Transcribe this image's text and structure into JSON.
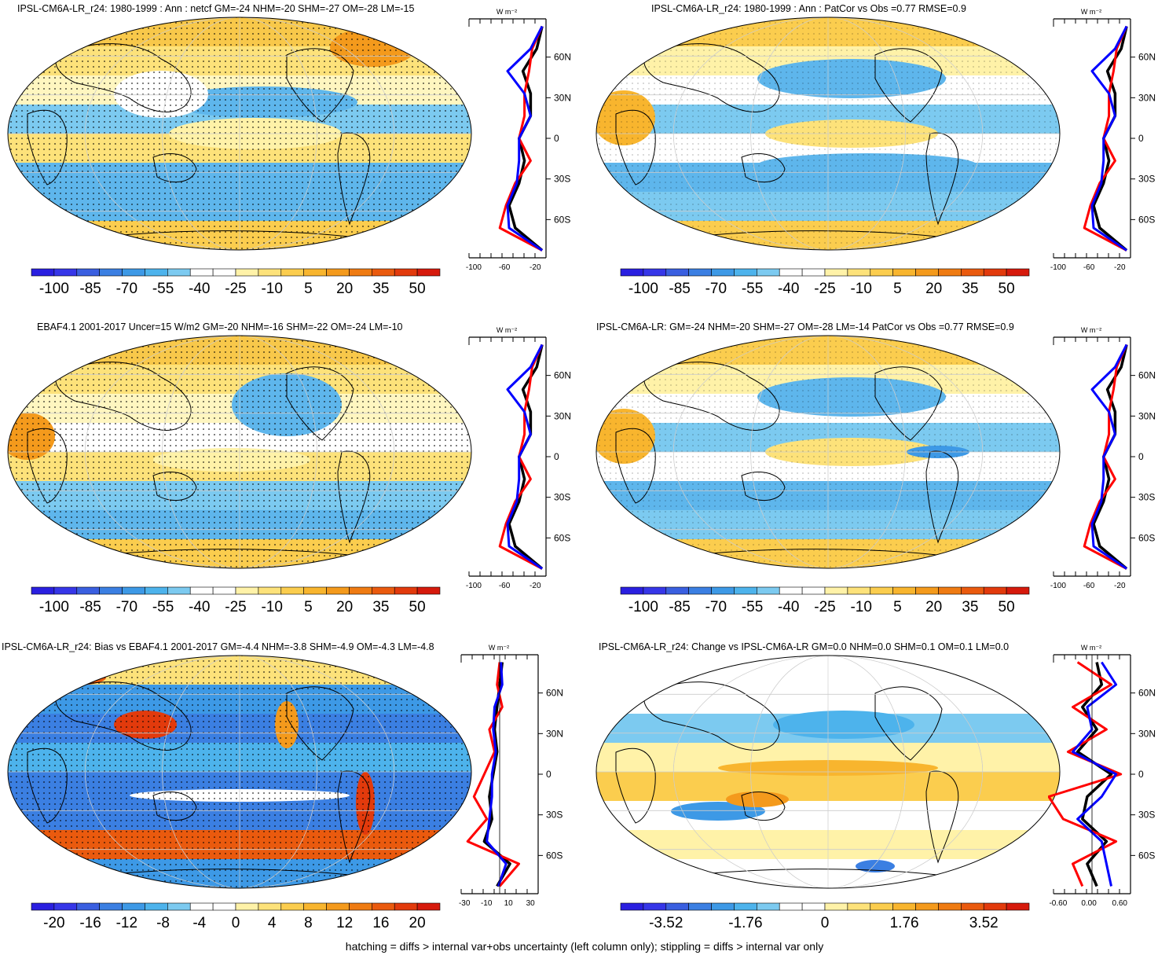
{
  "footnote": "hatching = diffs > internal var+obs uncertainty (left column only); stippling = diffs > internal var only",
  "zonal_unit": "W m⁻²",
  "lat_labels": [
    "60N",
    "30N",
    "0",
    "30S",
    "60S"
  ],
  "palette": [
    "#2a1fe0",
    "#3636e8",
    "#3a5fe0",
    "#3b7fe2",
    "#3d99e6",
    "#4db3ec",
    "#7ccaf0",
    "#ffffff",
    "#ffffff",
    "#fff2a8",
    "#fde27a",
    "#fbcd4e",
    "#f8b52e",
    "#f49a1c",
    "#ef7b12",
    "#ea5a0e",
    "#e23a0c",
    "#d61a0c"
  ],
  "colors": {
    "model": "#000000",
    "obs": "#ff0000",
    "alt": "#0000ff",
    "land": "#f5c63a",
    "ocean_neg": "#5eb6ec",
    "grid": "#cccccc"
  },
  "panels": [
    {
      "title": "IPSL-CM6A-LR_r24: 1980-1999 : Ann : netcf GM=-24 NHM=-20 SHM=-27 OM=-28 LM=-15",
      "colorbar_labels": [
        "-100",
        "-85",
        "-70",
        "-55",
        "-40",
        "-25",
        "-10",
        "5",
        "20",
        "35",
        "50"
      ],
      "zonal_ticks": [
        "-100",
        "-60",
        "-20"
      ]
    },
    {
      "title": "IPSL-CM6A-LR_r24: 1980-1999 : Ann : PatCor vs Obs =0.77 RMSE=0.9",
      "colorbar_labels": [
        "-100",
        "-85",
        "-70",
        "-55",
        "-40",
        "-25",
        "-10",
        "5",
        "20",
        "35",
        "50"
      ],
      "zonal_ticks": [
        "-100",
        "-60",
        "-20"
      ]
    },
    {
      "title": "EBAF4.1 2001-2017 Uncer=15 W/m2 GM=-20 NHM=-16 SHM=-22 OM=-24 LM=-10",
      "colorbar_labels": [
        "-100",
        "-85",
        "-70",
        "-55",
        "-40",
        "-25",
        "-10",
        "5",
        "20",
        "35",
        "50"
      ],
      "zonal_ticks": [
        "-100",
        "-60",
        "-20"
      ]
    },
    {
      "title": "IPSL-CM6A-LR: GM=-24 NHM=-20 SHM=-27 OM=-28 LM=-14 PatCor vs Obs =0.77 RMSE=0.9",
      "colorbar_labels": [
        "-100",
        "-85",
        "-70",
        "-55",
        "-40",
        "-25",
        "-10",
        "5",
        "20",
        "35",
        "50"
      ],
      "zonal_ticks": [
        "-100",
        "-60",
        "-20"
      ]
    },
    {
      "title": "IPSL-CM6A-LR_r24: Bias vs EBAF4.1 2001-2017 GM=-4.4 NHM=-3.8 SHM=-4.9 OM=-4.3 LM=-4.8",
      "colorbar_labels": [
        "-20",
        "-16",
        "-12",
        "-8",
        "-4",
        "0",
        "4",
        "8",
        "12",
        "16",
        "20"
      ],
      "zonal_ticks": [
        "-30",
        "-10",
        "10",
        "30"
      ]
    },
    {
      "title": "IPSL-CM6A-LR_r24: Change vs IPSL-CM6A-LR GM=0.0 NHM=0.0 SHM=0.1 OM=0.1 LM=0.0",
      "colorbar_labels": [
        "-3.52",
        "-1.76",
        "0",
        "1.76",
        "3.52"
      ],
      "zonal_ticks": [
        "-0.60",
        "0.00",
        "0.60"
      ]
    }
  ],
  "chart_data": [
    {
      "type": "heatmap",
      "title": "IPSL-CM6A-LR_r24: 1980-1999 : Ann : netcf GM=-24 NHM=-20 SHM=-27 OM=-28 LM=-15",
      "colorbar": [
        -100,
        -85,
        -70,
        -55,
        -40,
        -25,
        -10,
        5,
        20,
        35,
        50
      ]
    },
    {
      "type": "line",
      "lat": [
        75,
        60,
        45,
        30,
        15,
        0,
        -15,
        -30,
        -45,
        -60,
        -75
      ],
      "series": [
        {
          "values": [
            -5,
            -12,
            -30,
            -20,
            -20,
            -35,
            -28,
            -35,
            -48,
            -40,
            -5
          ]
        },
        {
          "values": [
            -5,
            -18,
            -22,
            -28,
            -28,
            -35,
            -20,
            -40,
            -52,
            -60,
            -5
          ]
        },
        {
          "values": [
            -5,
            -20,
            -50,
            -28,
            -20,
            -35,
            -35,
            -38,
            -50,
            -48,
            -5
          ]
        }
      ],
      "xlim": [
        -100,
        0
      ]
    },
    {
      "type": "heatmap",
      "title": "EBAF4.1 2001-2017 Uncer=15 W/m2 GM=-20 NHM=-16 SHM=-22 OM=-24 LM=-10",
      "colorbar": [
        -100,
        -85,
        -70,
        -55,
        -40,
        -25,
        -10,
        5,
        20,
        35,
        50
      ]
    },
    {
      "type": "heatmap",
      "title": "IPSL-CM6A-LR_r24: Bias vs EBAF4.1 2001-2017 GM=-4.4 NHM=-3.8 SHM=-4.9 OM=-4.3 LM=-4.8",
      "colorbar": [
        -20,
        -16,
        -12,
        -8,
        -4,
        0,
        4,
        8,
        12,
        16,
        20
      ]
    },
    {
      "type": "line",
      "lat": [
        75,
        60,
        45,
        30,
        15,
        0,
        -15,
        -30,
        -45,
        -60,
        -75
      ],
      "series": [
        {
          "values": [
            2,
            0,
            -2,
            -4,
            -2,
            -5,
            -8,
            -6,
            -12,
            8,
            -2
          ]
        },
        {
          "values": [
            0,
            -2,
            2,
            -8,
            -4,
            -12,
            -20,
            -10,
            -25,
            15,
            0
          ]
        },
        {
          "values": [
            1,
            2,
            -4,
            -5,
            -3,
            -6,
            -6,
            -8,
            -10,
            5,
            -1
          ]
        }
      ],
      "xlim": [
        -30,
        30
      ]
    },
    {
      "type": "heatmap",
      "title": "IPSL-CM6A-LR_r24: Change vs IPSL-CM6A-LR GM=0.0 NHM=0.0 SHM=0.1 OM=0.1 LM=0.0",
      "colorbar": [
        -3.52,
        -1.76,
        0,
        1.76,
        3.52
      ]
    },
    {
      "type": "line",
      "lat": [
        75,
        60,
        45,
        30,
        15,
        0,
        -15,
        -30,
        -45,
        -60,
        -75
      ],
      "series": [
        {
          "values": [
            0.1,
            0.2,
            -0.2,
            0.1,
            -0.3,
            0.4,
            -0.1,
            -0.2,
            0.3,
            -0.1,
            0.1
          ]
        },
        {
          "values": [
            -0.3,
            0.4,
            -0.4,
            0.3,
            -0.5,
            0.6,
            -0.9,
            -0.6,
            0.5,
            -0.4,
            -0.2
          ]
        },
        {
          "values": [
            0.2,
            0.5,
            -0.1,
            0.0,
            -0.4,
            0.5,
            0.2,
            -0.3,
            0.2,
            0.3,
            0.4
          ]
        }
      ],
      "xlim": [
        -0.8,
        0.8
      ]
    }
  ]
}
